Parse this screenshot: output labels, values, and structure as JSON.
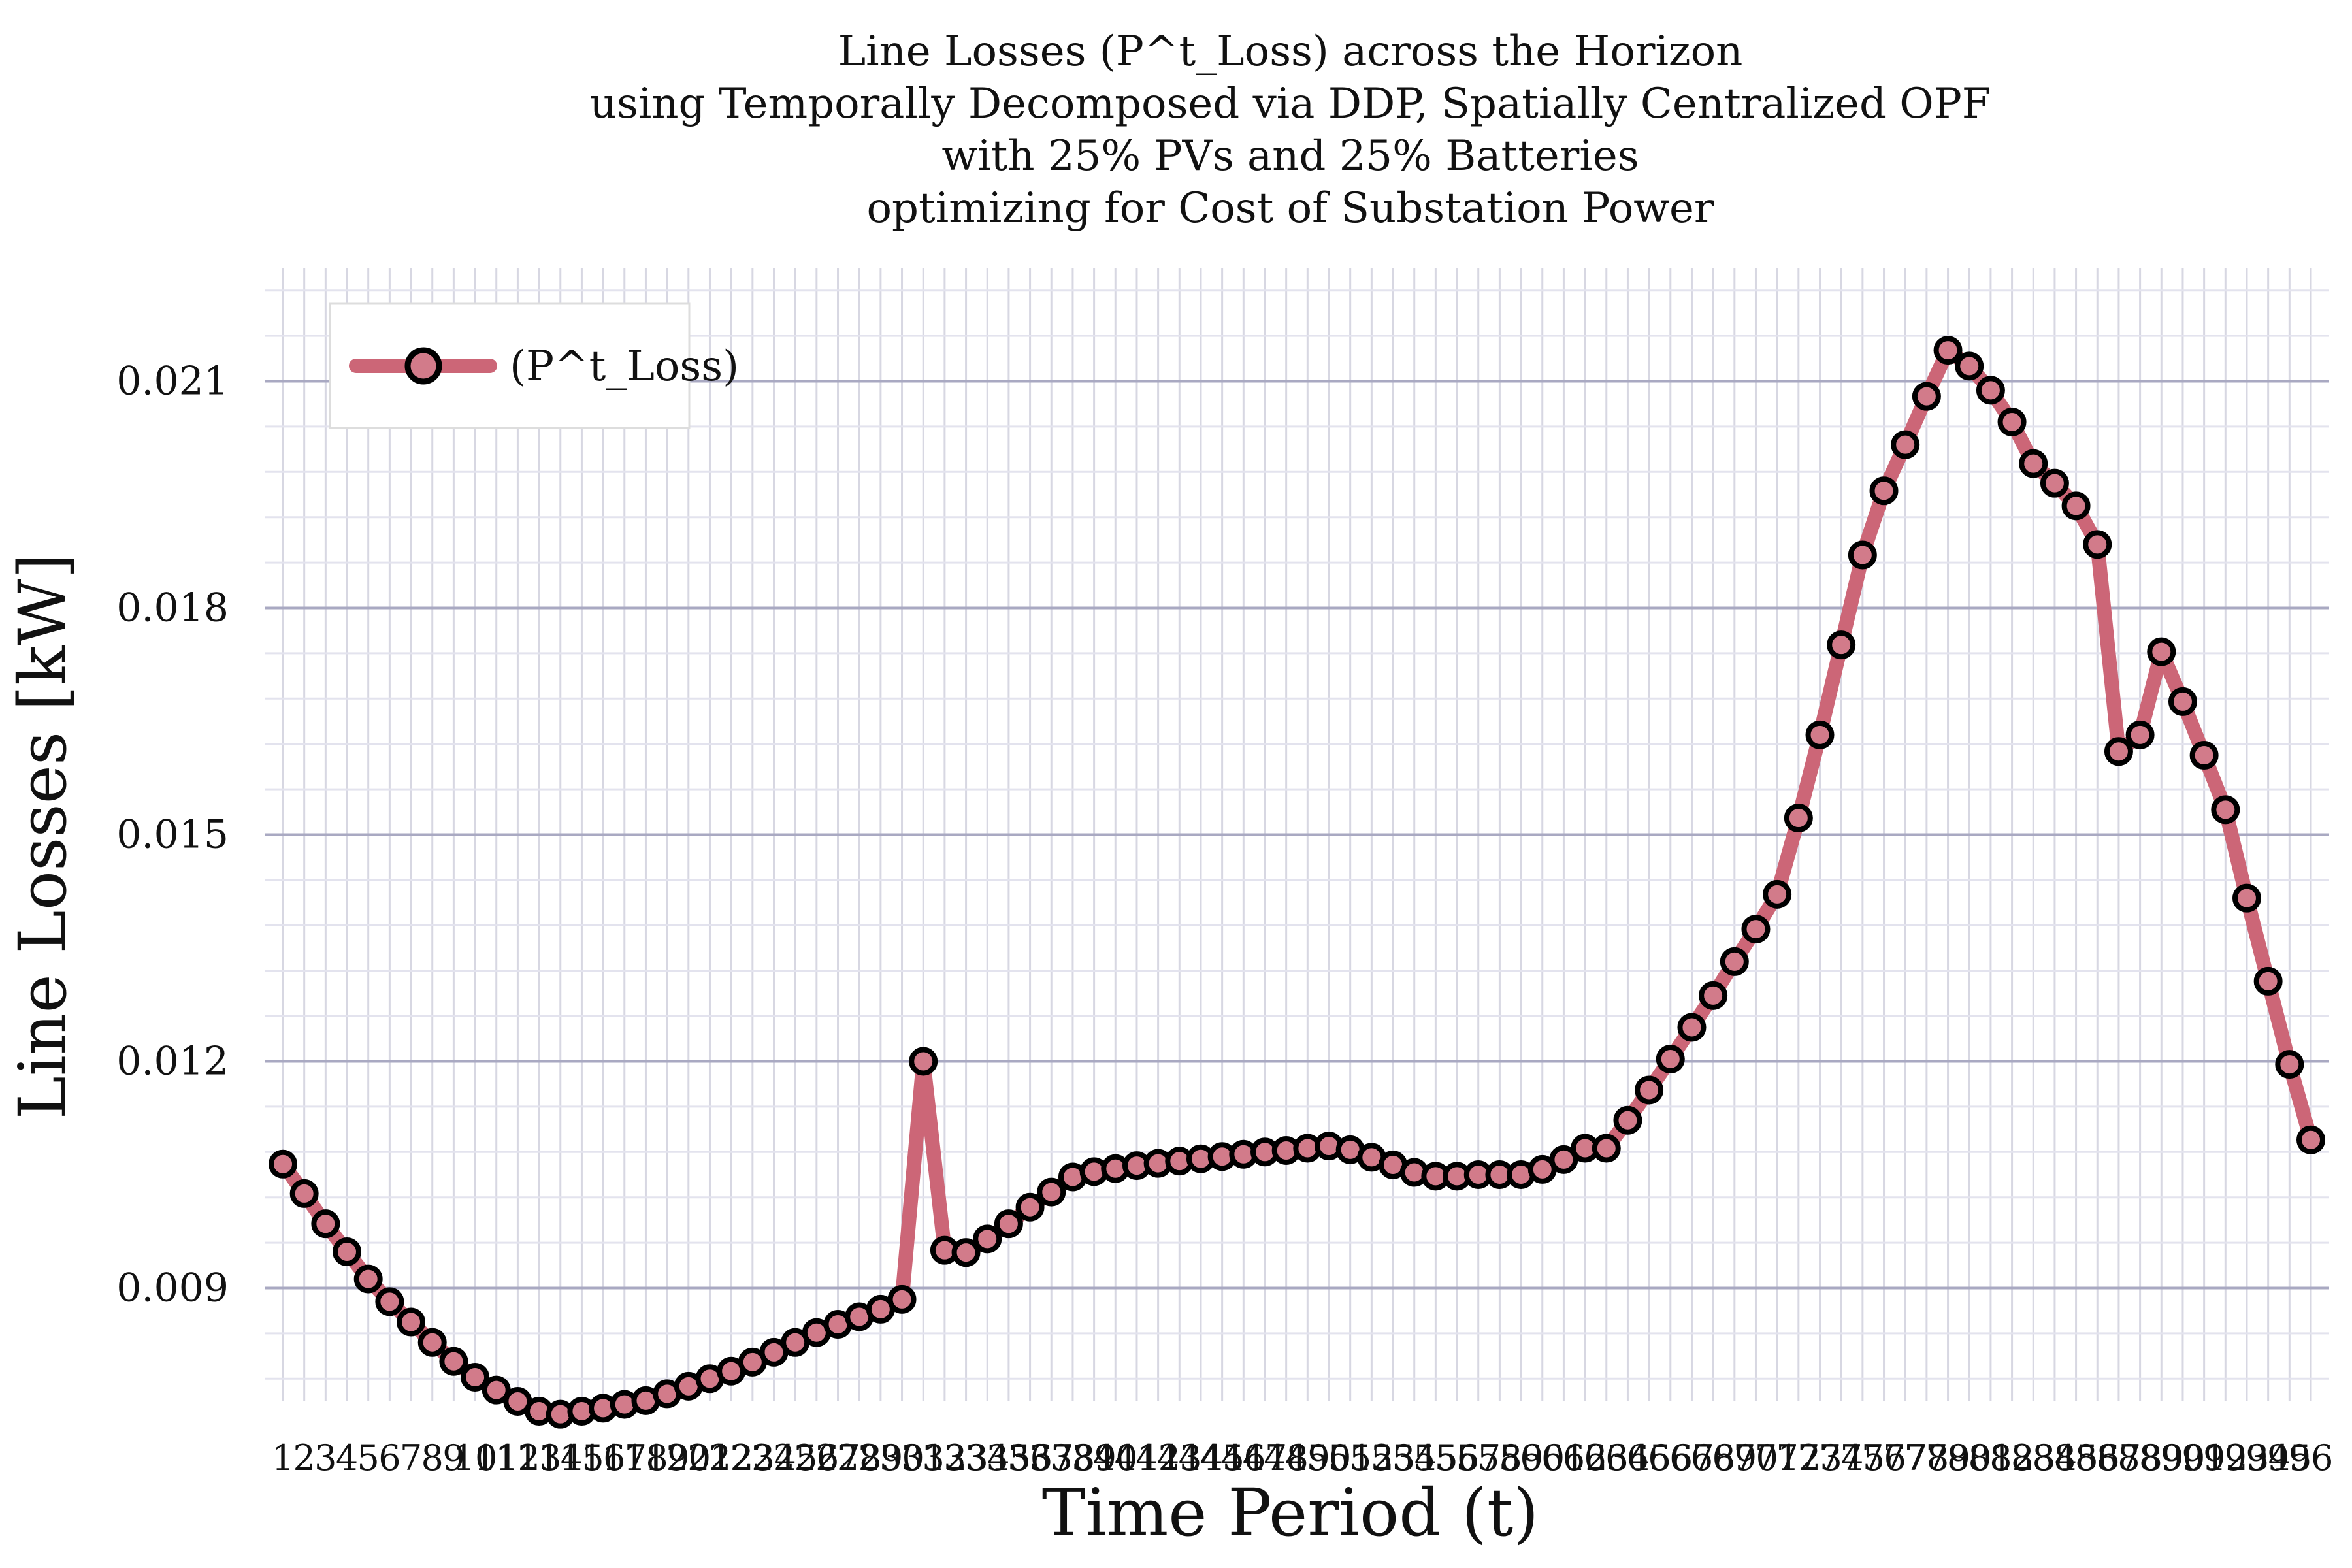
{
  "chart_data": {
    "type": "line",
    "title": [
      "Line Losses (P^t_Loss) across the Horizon",
      "using Temporally Decomposed via DDP, Spatially Centralized OPF",
      "with 25% PVs and 25% Batteries",
      "optimizing for Cost of Substation Power"
    ],
    "xlabel": "Time Period (t)",
    "ylabel": "Line Losses [kW]",
    "ylim": [
      0.0075,
      0.0225
    ],
    "yticks": [
      "0.009",
      "0.012",
      "0.015",
      "0.018",
      "0.021"
    ],
    "ytick_values": [
      0.009,
      0.012,
      0.015,
      0.018,
      0.021
    ],
    "grid": true,
    "legend_position": "top-left",
    "colors": {
      "line": "#cc6677",
      "marker_face": "#d27b8a",
      "marker_edge": "#000000",
      "grid_major": "#b7b7cc",
      "grid_minor": "#e3e3ee"
    },
    "x": [
      1,
      2,
      3,
      4,
      5,
      6,
      7,
      8,
      9,
      10,
      11,
      12,
      13,
      14,
      15,
      16,
      17,
      18,
      19,
      20,
      21,
      22,
      23,
      24,
      25,
      26,
      27,
      28,
      29,
      30,
      31,
      32,
      33,
      34,
      35,
      36,
      37,
      38,
      39,
      40,
      41,
      42,
      43,
      44,
      45,
      46,
      47,
      48,
      49,
      50,
      51,
      52,
      53,
      54,
      55,
      56,
      57,
      58,
      59,
      60,
      61,
      62,
      63,
      64,
      65,
      66,
      67,
      68,
      69,
      70,
      71,
      72,
      73,
      74,
      75,
      76,
      77,
      78,
      79,
      80,
      81,
      82,
      83,
      84,
      85,
      86,
      87,
      88,
      89,
      90,
      91,
      92,
      93,
      94,
      95,
      96
    ],
    "xtick_labels": [
      "1",
      "2",
      "3",
      "4",
      "5",
      "6",
      "7",
      "8",
      "9",
      "10",
      "11",
      "12",
      "13",
      "14",
      "15",
      "16",
      "17",
      "18",
      "19",
      "20",
      "21",
      "22",
      "23",
      "24",
      "25",
      "26",
      "27",
      "28",
      "29",
      "30",
      "31",
      "32",
      "33",
      "34",
      "35",
      "36",
      "37",
      "38",
      "39",
      "40",
      "41",
      "42",
      "43",
      "44",
      "45",
      "46",
      "47",
      "48",
      "49",
      "50",
      "51",
      "52",
      "53",
      "54",
      "55",
      "56",
      "57",
      "58",
      "59",
      "60",
      "61",
      "62",
      "63",
      "64",
      "65",
      "66",
      "67",
      "68",
      "69",
      "70",
      "71",
      "72",
      "73",
      "74",
      "75",
      "76",
      "77",
      "78",
      "79",
      "80",
      "81",
      "82",
      "83",
      "84",
      "85",
      "86",
      "87",
      "88",
      "89",
      "90",
      "91",
      "92",
      "93",
      "94",
      "95",
      "96"
    ],
    "series": [
      {
        "name": "(P^t_Loss)",
        "values": [
          0.01064,
          0.01025,
          0.00985,
          0.00948,
          0.00912,
          0.00882,
          0.00855,
          0.00828,
          0.00803,
          0.00782,
          0.00765,
          0.0075,
          0.00737,
          0.00733,
          0.00737,
          0.00741,
          0.00746,
          0.00751,
          0.0076,
          0.0077,
          0.0078,
          0.0079,
          0.00802,
          0.00815,
          0.00828,
          0.00841,
          0.00852,
          0.00862,
          0.00872,
          0.00885,
          0.012,
          0.0095,
          0.00947,
          0.00965,
          0.00985,
          0.01007,
          0.01027,
          0.01047,
          0.01054,
          0.01058,
          0.01062,
          0.01065,
          0.01068,
          0.01071,
          0.01074,
          0.01077,
          0.0108,
          0.01082,
          0.01085,
          0.01088,
          0.01083,
          0.01073,
          0.01063,
          0.01053,
          0.01048,
          0.01048,
          0.0105,
          0.0105,
          0.0105,
          0.01057,
          0.0107,
          0.01085,
          0.01085,
          0.01122,
          0.01162,
          0.01203,
          0.01245,
          0.01287,
          0.01332,
          0.01375,
          0.01421,
          0.01522,
          0.01632,
          0.01751,
          0.0187,
          0.01955,
          0.02016,
          0.0208,
          0.02141,
          0.0212,
          0.02088,
          0.02046,
          0.01991,
          0.01965,
          0.01935,
          0.01884,
          0.0161,
          0.01632,
          0.01742,
          0.01676,
          0.01605,
          0.01533,
          0.01416,
          0.01306,
          0.01196,
          0.01096
        ]
      }
    ]
  }
}
